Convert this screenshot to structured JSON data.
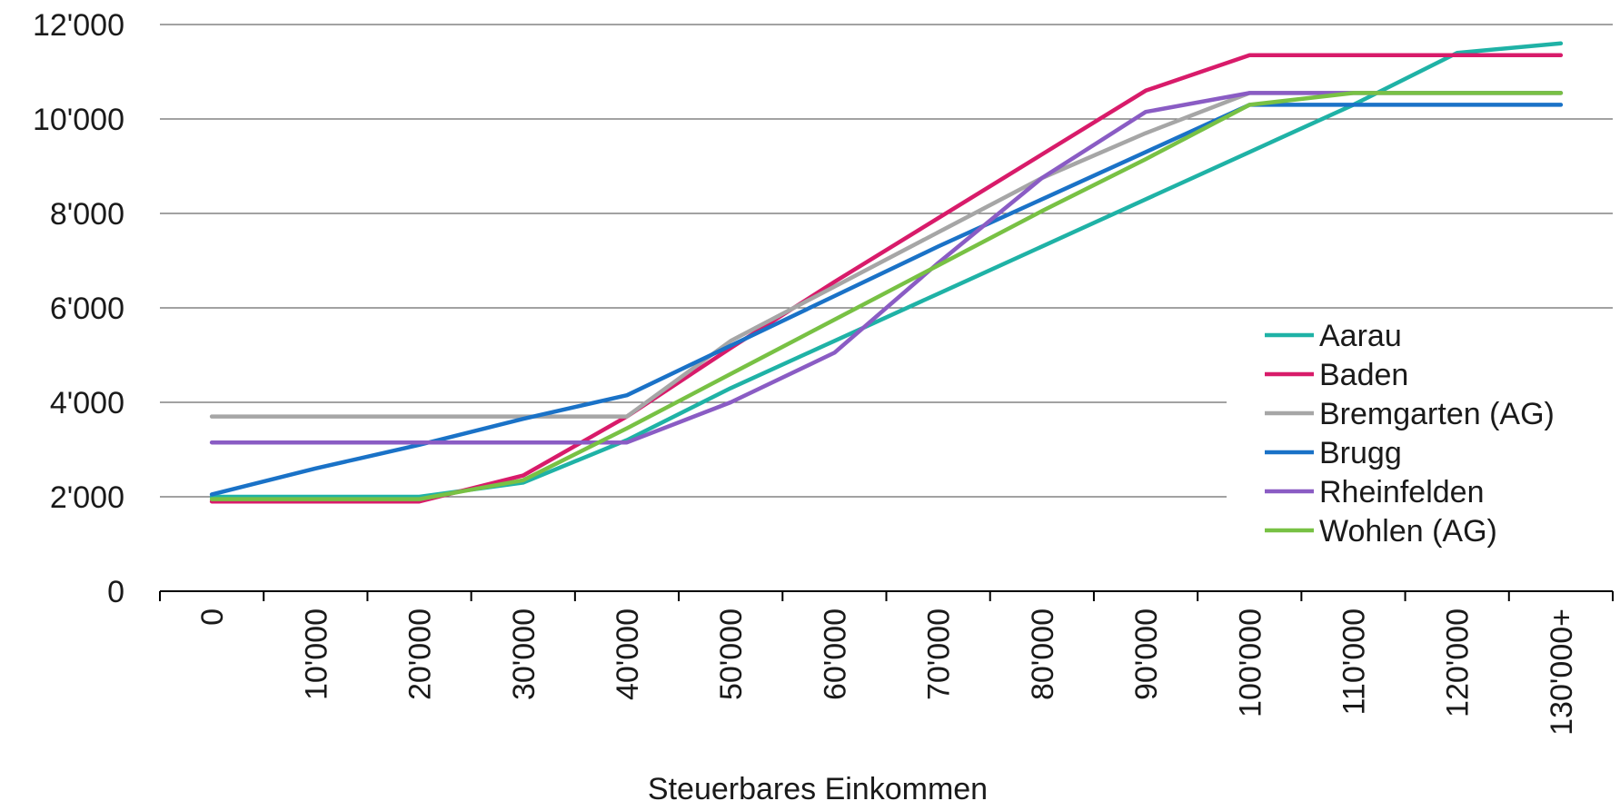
{
  "chart_data": {
    "type": "line",
    "title": "",
    "xlabel": "Steuerbares Einkommen",
    "ylabel": "",
    "ylim": [
      0,
      12000
    ],
    "yticks": [
      "0",
      "2'000",
      "4'000",
      "6'000",
      "8'000",
      "10'000",
      "12'000"
    ],
    "ytick_values": [
      0,
      2000,
      4000,
      6000,
      8000,
      10000,
      12000
    ],
    "categories": [
      "0",
      "10'000",
      "20'000",
      "30'000",
      "40'000",
      "50'000",
      "60'000",
      "70'000",
      "80'000",
      "90'000",
      "100'000",
      "110'000",
      "120'000",
      "130'000+"
    ],
    "grid": true,
    "legend_position": "right",
    "series": [
      {
        "name": "Aarau",
        "color": "#1fb2a6",
        "values": [
          2000,
          2000,
          2000,
          2300,
          3200,
          4300,
          5300,
          6300,
          7300,
          8300,
          9300,
          10300,
          11400,
          11600
        ]
      },
      {
        "name": "Baden",
        "color": "#d81b6a",
        "values": [
          1900,
          1900,
          1900,
          2450,
          3700,
          5150,
          6550,
          7900,
          9250,
          10600,
          11350,
          11350,
          11350,
          11350
        ]
      },
      {
        "name": "Bremgarten (AG)",
        "color": "#a6a6a6",
        "values": [
          3700,
          3700,
          3700,
          3700,
          3700,
          5300,
          6450,
          7600,
          8750,
          9700,
          10550,
          10550,
          10550,
          10550
        ]
      },
      {
        "name": "Brugg",
        "color": "#1a72c7",
        "values": [
          2050,
          2600,
          3100,
          3650,
          4150,
          5200,
          6250,
          7300,
          8300,
          9300,
          10300,
          10300,
          10300,
          10300
        ]
      },
      {
        "name": "Rheinfelden",
        "color": "#8a5cc4",
        "values": [
          3150,
          3150,
          3150,
          3150,
          3150,
          4000,
          5050,
          6950,
          8750,
          10150,
          10550,
          10550,
          10550,
          10550
        ]
      },
      {
        "name": "Wohlen (AG)",
        "color": "#78c144",
        "values": [
          1950,
          1950,
          1950,
          2350,
          3450,
          4600,
          5750,
          6900,
          8050,
          9150,
          10300,
          10550,
          10550,
          10550
        ]
      }
    ]
  }
}
